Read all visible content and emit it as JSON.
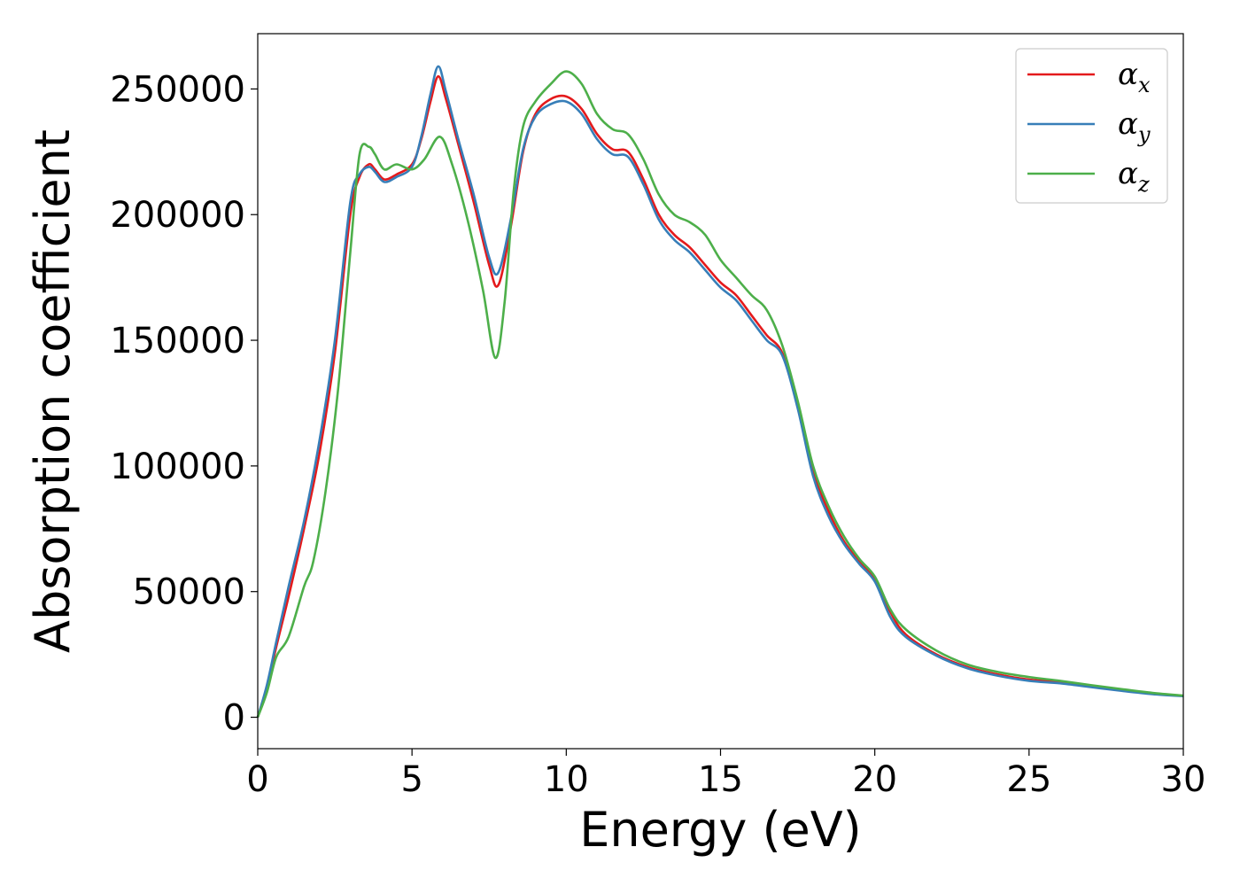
{
  "chart_data": {
    "type": "line",
    "title": "",
    "xlabel": "Energy (eV)",
    "ylabel": "Absorption coefficient",
    "xlim": [
      0,
      30
    ],
    "ylim": [
      -12500,
      272000
    ],
    "xticks": [
      0,
      5,
      10,
      15,
      20,
      25,
      30
    ],
    "xtick_labels": [
      "0",
      "5",
      "10",
      "15",
      "20",
      "25",
      "30"
    ],
    "yticks": [
      0,
      50000,
      100000,
      150000,
      200000,
      250000
    ],
    "ytick_labels": [
      "0",
      "50000",
      "100000",
      "150000",
      "200000",
      "250000"
    ],
    "grid": false,
    "legend": "top-right",
    "series": [
      {
        "name": "x",
        "legend_base": "α",
        "color": "#e41a1c",
        "x": [
          0,
          0.3,
          0.6,
          1,
          1.5,
          2,
          2.5,
          3,
          3.3,
          3.6,
          3.8,
          4.1,
          4.5,
          5,
          5.3,
          5.6,
          5.85,
          6.1,
          6.5,
          7,
          7.5,
          7.8,
          8.2,
          8.6,
          9,
          9.5,
          10,
          10.5,
          11,
          11.5,
          12,
          12.5,
          13,
          13.5,
          14,
          14.5,
          15,
          15.5,
          16,
          16.5,
          17,
          17.5,
          18,
          18.5,
          19,
          19.5,
          20,
          20.5,
          21,
          22,
          23,
          24,
          25,
          26,
          27,
          28,
          29,
          30
        ],
        "y": [
          0,
          12000,
          28000,
          48000,
          75000,
          105000,
          145000,
          200000,
          215000,
          220000,
          218000,
          214000,
          216000,
          220000,
          230000,
          245000,
          255000,
          246000,
          228000,
          205000,
          180000,
          172000,
          195000,
          225000,
          240000,
          246000,
          247000,
          242000,
          232000,
          226000,
          225000,
          214000,
          200000,
          192000,
          187000,
          180000,
          173000,
          168000,
          160000,
          152000,
          145000,
          125000,
          98000,
          82000,
          70000,
          62000,
          55000,
          42000,
          33000,
          25000,
          20000,
          17000,
          15000,
          14000,
          12500,
          11000,
          9500,
          8500
        ]
      },
      {
        "name": "y",
        "legend_base": "α",
        "color": "#377eb8",
        "x": [
          0,
          0.3,
          0.6,
          1,
          1.5,
          2,
          2.5,
          3,
          3.3,
          3.6,
          3.8,
          4.1,
          4.5,
          5,
          5.3,
          5.6,
          5.85,
          6.1,
          6.5,
          7,
          7.5,
          7.8,
          8.2,
          8.6,
          9,
          9.5,
          10,
          10.5,
          11,
          11.5,
          12,
          12.5,
          13,
          13.5,
          14,
          14.5,
          15,
          15.5,
          16,
          16.5,
          17,
          17.5,
          18,
          18.5,
          19,
          19.5,
          20,
          20.5,
          21,
          22,
          23,
          24,
          25,
          26,
          27,
          28,
          29,
          30
        ],
        "y": [
          0,
          13000,
          30000,
          52000,
          78000,
          110000,
          150000,
          205000,
          216000,
          219000,
          217000,
          213000,
          215000,
          219000,
          231000,
          248000,
          259000,
          249000,
          230000,
          208000,
          183000,
          177000,
          198000,
          226000,
          239000,
          244000,
          245000,
          240000,
          230000,
          224000,
          223000,
          212000,
          198000,
          190000,
          185000,
          178000,
          171000,
          166000,
          158000,
          150000,
          144000,
          123000,
          96000,
          80000,
          69000,
          61000,
          54000,
          40000,
          32000,
          24500,
          19500,
          16500,
          14500,
          13500,
          12000,
          10500,
          9200,
          8400
        ]
      },
      {
        "name": "z",
        "legend_base": "α",
        "color": "#4daf4a",
        "x": [
          0,
          0.3,
          0.6,
          1,
          1.5,
          1.8,
          2.2,
          2.6,
          3,
          3.3,
          3.6,
          3.8,
          4.1,
          4.5,
          5,
          5.4,
          5.9,
          6.3,
          6.8,
          7.3,
          7.7,
          8,
          8.3,
          8.6,
          9,
          9.5,
          10,
          10.5,
          11,
          11.5,
          12,
          12.5,
          13,
          13.5,
          14,
          14.5,
          15,
          15.5,
          16,
          16.5,
          17,
          17.5,
          18,
          18.5,
          19,
          19.5,
          20,
          20.5,
          21,
          22,
          23,
          24,
          25,
          26,
          27,
          28,
          29,
          30
        ],
        "y": [
          0,
          10000,
          24000,
          32000,
          52000,
          62000,
          90000,
          130000,
          185000,
          224000,
          227000,
          224000,
          218000,
          220000,
          218000,
          222000,
          231000,
          220000,
          198000,
          170000,
          143000,
          165000,
          210000,
          235000,
          245000,
          252000,
          257000,
          252000,
          240000,
          234000,
          232000,
          222000,
          208000,
          200000,
          197000,
          192000,
          182000,
          175000,
          168000,
          162000,
          148000,
          126000,
          100000,
          84000,
          72000,
          63000,
          56000,
          43000,
          35000,
          26500,
          21000,
          18000,
          16000,
          14500,
          12800,
          11200,
          9700,
          8600
        ]
      }
    ]
  }
}
